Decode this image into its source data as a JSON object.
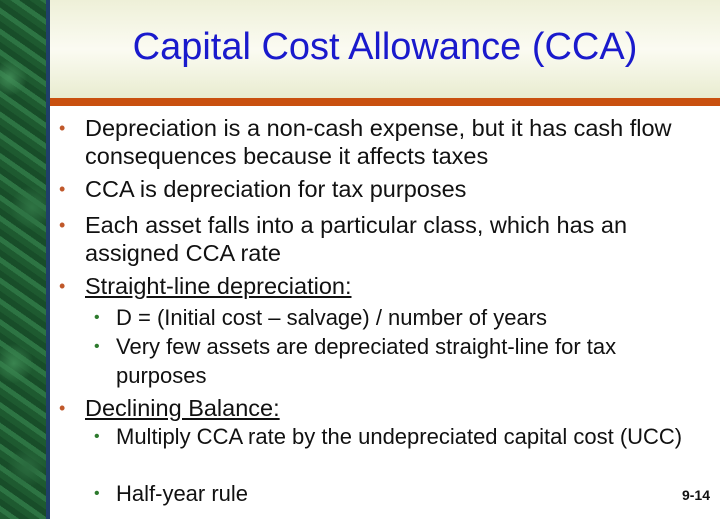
{
  "title": "Capital Cost Allowance (CCA)",
  "bullets": [
    {
      "text": "Depreciation is a non-cash expense, but it has cash flow consequences because it affects taxes"
    },
    {
      "text": "CCA is depreciation for tax purposes"
    },
    {
      "text": "Each asset falls into a particular class, which has an assigned CCA rate"
    },
    {
      "text": "Straight-line depreciation:",
      "sub": [
        "D = (Initial cost – salvage) / number of years",
        "Very few assets are depreciated straight-line for tax purposes"
      ]
    },
    {
      "text": "Declining Balance:",
      "sub": [
        "Multiply CCA rate by the undepreciated capital cost (UCC)",
        "Half-year rule"
      ]
    }
  ],
  "bullet_color": "#c0582a",
  "sub_bullet_color": "#2d7a2d",
  "title_color": "#1a1acc",
  "page_number": "9-14"
}
